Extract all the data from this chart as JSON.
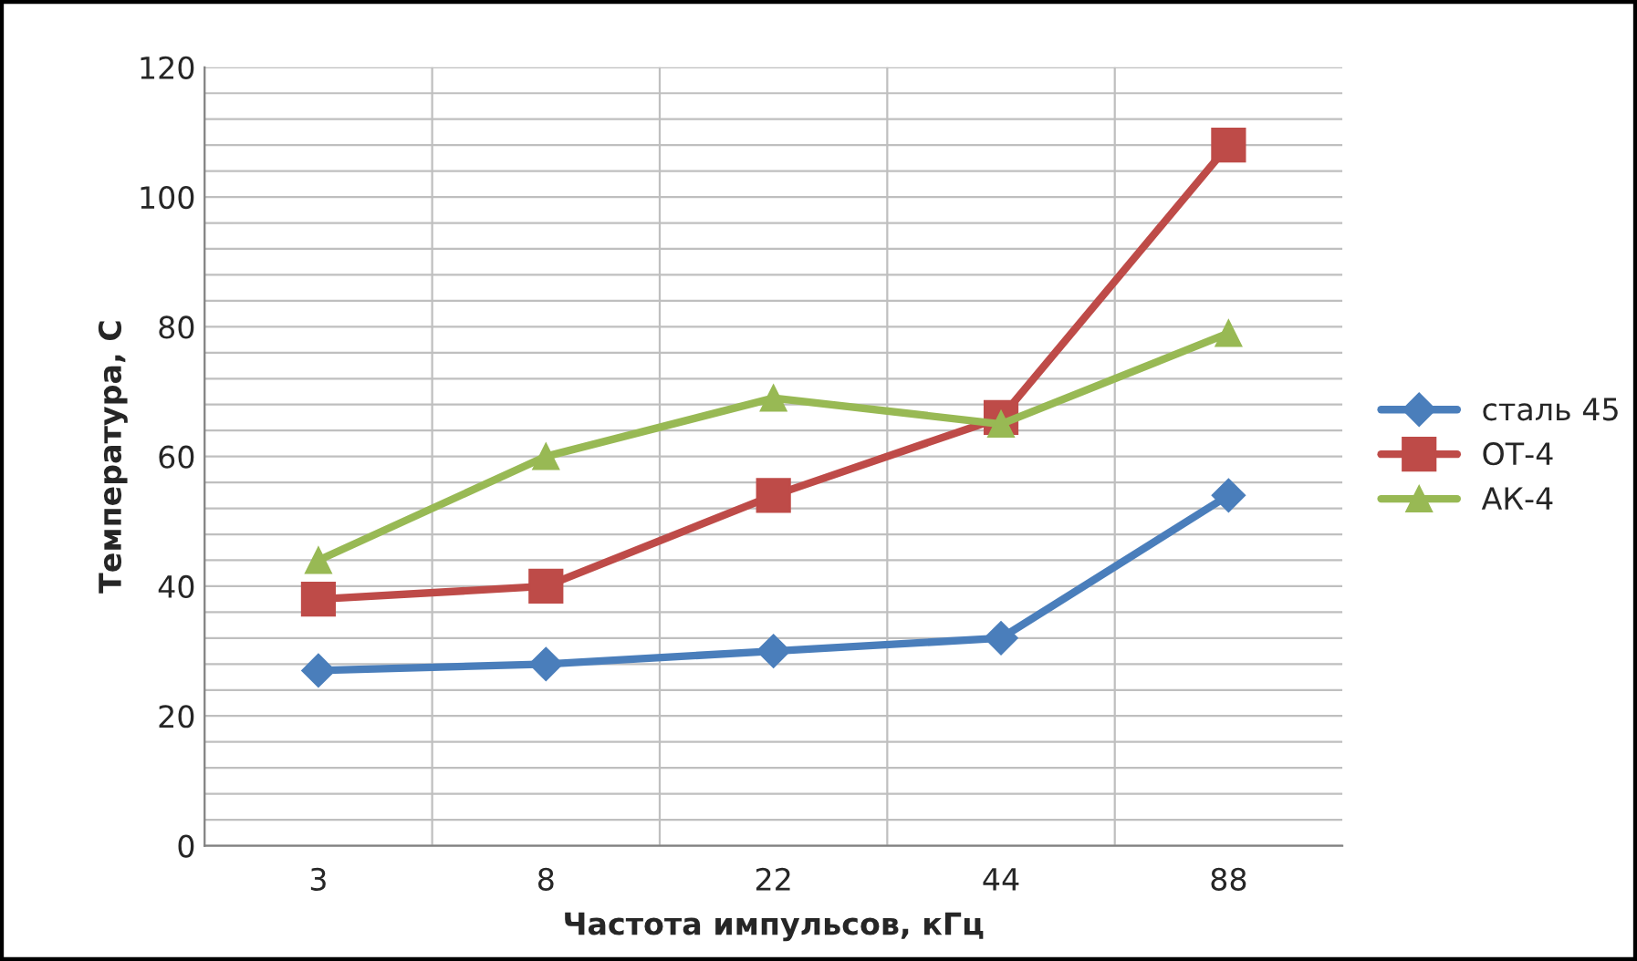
{
  "chart_data": {
    "type": "line",
    "xlabel": "Частота импульсов, кГц",
    "ylabel": "Температура, С",
    "categories": [
      "3",
      "8",
      "22",
      "44",
      "88"
    ],
    "series": [
      {
        "name": "сталь 45",
        "color": "#4a7ebb",
        "marker": "diamond",
        "values": [
          27,
          28,
          30,
          32,
          54
        ]
      },
      {
        "name": "ОТ-4",
        "color": "#be4b48",
        "marker": "square",
        "values": [
          38,
          40,
          54,
          66,
          108
        ]
      },
      {
        "name": "АК-4",
        "color": "#98b954",
        "marker": "triangle",
        "values": [
          44,
          60,
          69,
          65,
          79
        ]
      }
    ],
    "ylim": [
      0,
      120
    ],
    "yticks": [
      0,
      {
        "value": 4,
        "label": null
      },
      {
        "value": 8,
        "label": null
      },
      {
        "value": 12,
        "label": null
      },
      {
        "value": 16,
        "label": null
      },
      20,
      {
        "value": 24,
        "label": null
      },
      {
        "value": 28,
        "label": null
      },
      {
        "value": 32,
        "label": null
      },
      {
        "value": 36,
        "label": null
      },
      40,
      {
        "value": 44,
        "label": null
      },
      {
        "value": 48,
        "label": null
      },
      {
        "value": 52,
        "label": null
      },
      {
        "value": 56,
        "label": null
      },
      60,
      {
        "value": 64,
        "label": null
      },
      {
        "value": 68,
        "label": null
      },
      {
        "value": 72,
        "label": null
      },
      {
        "value": 76,
        "label": null
      },
      80,
      {
        "value": 84,
        "label": null
      },
      {
        "value": 88,
        "label": null
      },
      {
        "value": 92,
        "label": null
      },
      {
        "value": 96,
        "label": null
      },
      100,
      {
        "value": 104,
        "label": null
      },
      {
        "value": 108,
        "label": null
      },
      {
        "value": 112,
        "label": null
      },
      {
        "value": 116,
        "label": null
      },
      120
    ],
    "grid": true,
    "legend": "right",
    "line_style": "solid"
  }
}
